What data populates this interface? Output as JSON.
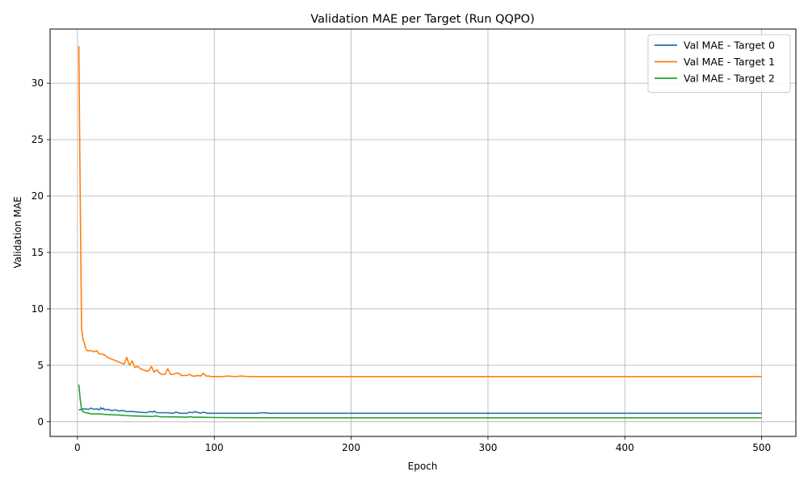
{
  "chart_data": {
    "type": "line",
    "title": "Validation MAE per Target (Run QQPO)",
    "xlabel": "Epoch",
    "ylabel": "Validation MAE",
    "xlim": [
      -20,
      525
    ],
    "ylim": [
      -1.3,
      34.8
    ],
    "xticks": [
      0,
      100,
      200,
      300,
      400,
      500
    ],
    "yticks": [
      0,
      5,
      10,
      15,
      20,
      25,
      30
    ],
    "grid": true,
    "legend_position": "top-right",
    "series": [
      {
        "name": "Val MAE - Target 0",
        "color": "#1f77b4",
        "x": [
          1,
          3,
          5,
          8,
          10,
          12,
          14,
          16,
          17,
          18,
          19,
          20,
          22,
          25,
          28,
          30,
          33,
          36,
          40,
          45,
          50,
          53,
          55,
          56,
          58,
          60,
          65,
          70,
          72,
          75,
          80,
          82,
          84,
          86,
          90,
          92,
          95,
          100,
          105,
          110,
          120,
          130,
          136,
          140,
          150,
          200,
          300,
          400,
          500
        ],
        "y": [
          1.05,
          1.1,
          1.15,
          1.1,
          1.2,
          1.1,
          1.15,
          1.05,
          1.25,
          1.1,
          1.2,
          1.05,
          1.1,
          1.0,
          1.05,
          0.95,
          1.0,
          0.9,
          0.9,
          0.85,
          0.8,
          0.9,
          0.85,
          0.95,
          0.8,
          0.8,
          0.8,
          0.75,
          0.85,
          0.75,
          0.75,
          0.85,
          0.8,
          0.9,
          0.75,
          0.85,
          0.75,
          0.75,
          0.75,
          0.75,
          0.75,
          0.75,
          0.8,
          0.75,
          0.75,
          0.75,
          0.75,
          0.75,
          0.75
        ]
      },
      {
        "name": "Val MAE - Target 1",
        "color": "#ff7f0e",
        "x": [
          1,
          2,
          3,
          4,
          5,
          6,
          7,
          8,
          10,
          12,
          14,
          16,
          18,
          20,
          22,
          24,
          26,
          28,
          30,
          32,
          34,
          36,
          38,
          40,
          42,
          44,
          46,
          48,
          50,
          52,
          54,
          56,
          58,
          60,
          62,
          64,
          66,
          68,
          70,
          72,
          74,
          76,
          78,
          80,
          82,
          84,
          86,
          88,
          90,
          92,
          94,
          96,
          98,
          100,
          105,
          110,
          115,
          120,
          125,
          130,
          135,
          140,
          150,
          200,
          300,
          400,
          500
        ],
        "y": [
          33.3,
          20.0,
          8.3,
          7.3,
          7.0,
          6.5,
          6.3,
          6.3,
          6.3,
          6.2,
          6.3,
          6.0,
          6.0,
          5.9,
          5.7,
          5.6,
          5.5,
          5.4,
          5.3,
          5.2,
          5.1,
          5.7,
          5.0,
          5.4,
          4.8,
          4.9,
          4.7,
          4.6,
          4.5,
          4.5,
          4.9,
          4.4,
          4.6,
          4.3,
          4.2,
          4.2,
          4.7,
          4.2,
          4.2,
          4.3,
          4.3,
          4.1,
          4.1,
          4.1,
          4.2,
          4.05,
          4.05,
          4.1,
          4.05,
          4.3,
          4.05,
          4.05,
          4.0,
          4.0,
          4.0,
          4.05,
          4.0,
          4.05,
          4.0,
          4.0,
          4.0,
          4.0,
          4.0,
          4.0,
          4.0,
          4.0,
          4.0
        ]
      },
      {
        "name": "Val MAE - Target 2",
        "color": "#2ca02c",
        "x": [
          1,
          2,
          3,
          4,
          6,
          8,
          10,
          15,
          20,
          25,
          30,
          35,
          40,
          45,
          50,
          55,
          57,
          60,
          65,
          70,
          75,
          80,
          82,
          85,
          90,
          100,
          120,
          150,
          200,
          300,
          400,
          500
        ],
        "y": [
          3.3,
          2.0,
          1.1,
          0.9,
          0.8,
          0.75,
          0.7,
          0.7,
          0.65,
          0.62,
          0.6,
          0.55,
          0.52,
          0.5,
          0.48,
          0.46,
          0.52,
          0.45,
          0.44,
          0.43,
          0.42,
          0.4,
          0.45,
          0.4,
          0.4,
          0.38,
          0.36,
          0.35,
          0.35,
          0.35,
          0.35,
          0.35
        ]
      }
    ]
  }
}
